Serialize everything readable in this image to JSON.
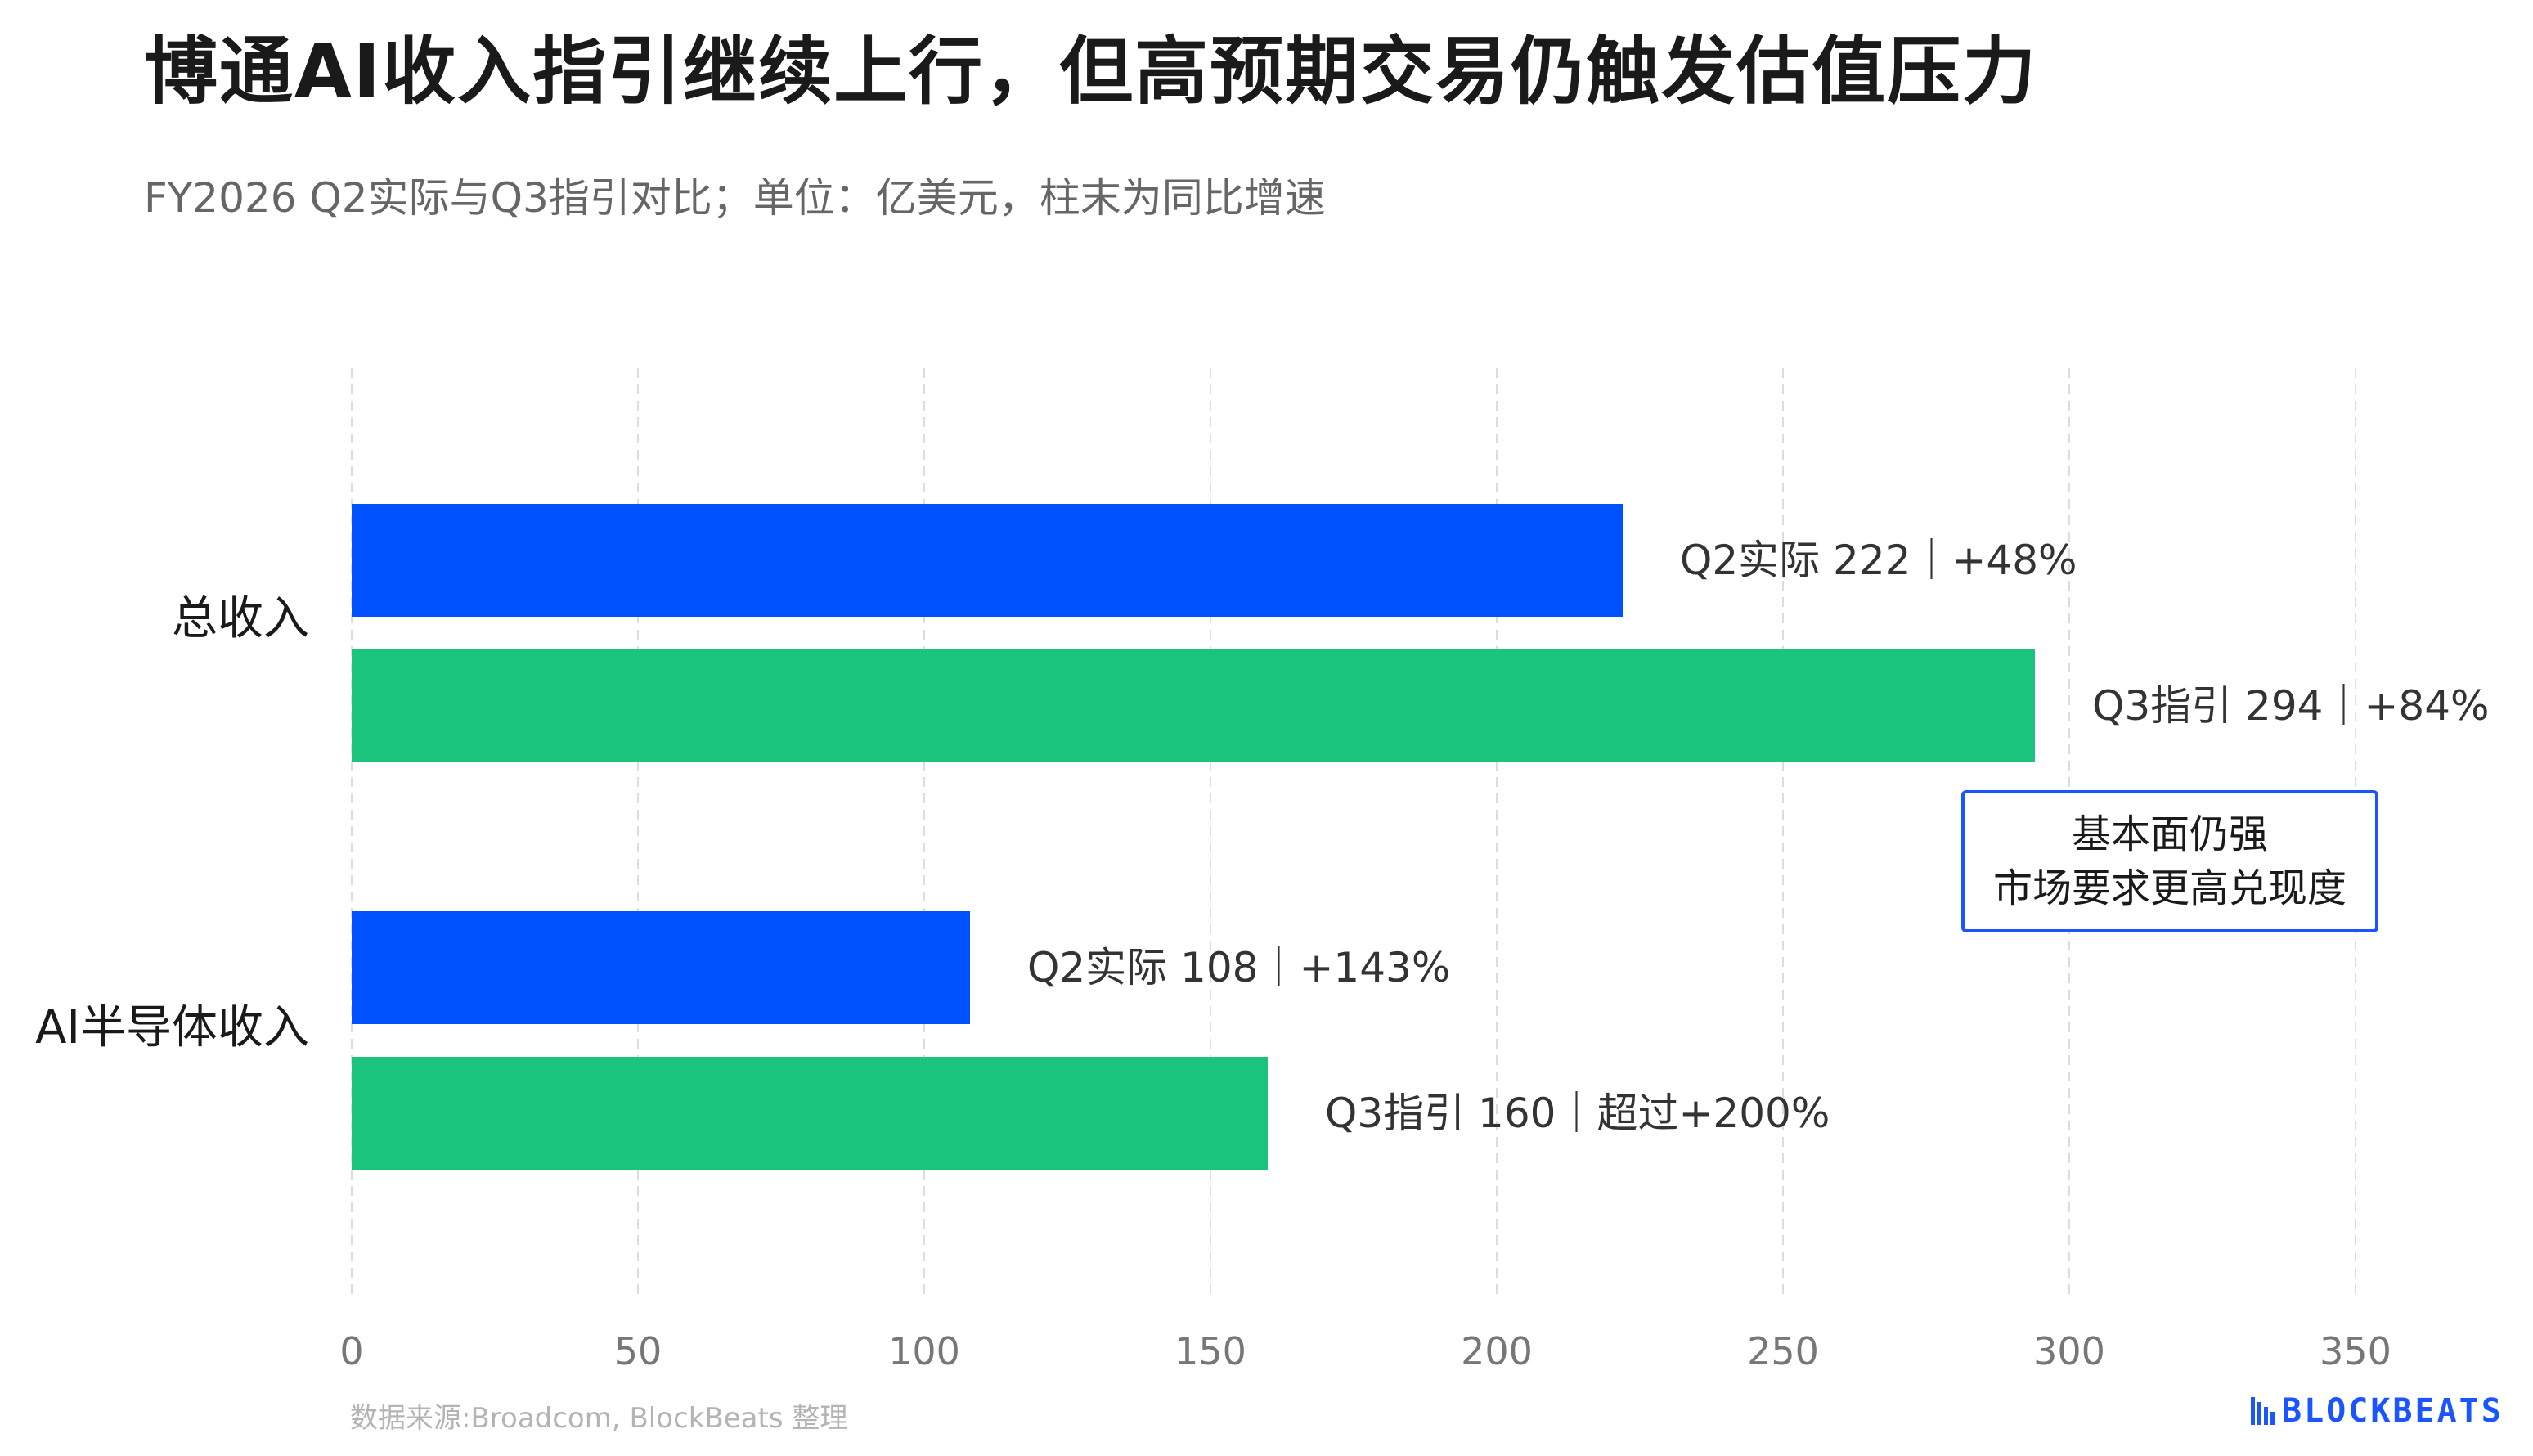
{
  "header": {
    "title": "博通AI收入指引继续上行，但高预期交易仍触发估值压力",
    "subtitle": "FY2026 Q2实际与Q3指引对比；单位：亿美元，柱末为同比增速"
  },
  "colors": {
    "q2_actual": "#0051ff",
    "q3_guidance": "#1bc47d",
    "accent": "#1a55ff",
    "grid": "#dddddd"
  },
  "chart_data": {
    "type": "bar",
    "orientation": "horizontal",
    "categories": [
      "总收入",
      "AI半导体收入"
    ],
    "series": [
      {
        "name": "Q2实际",
        "values": [
          222,
          108
        ],
        "labels": [
          "Q2实际 222｜+48%",
          "Q2实际 108｜+143%"
        ]
      },
      {
        "name": "Q3指引",
        "values": [
          294,
          160
        ],
        "labels": [
          "Q3指引 294｜+84%",
          "Q3指引 160｜超过+200%"
        ]
      }
    ],
    "xlim": [
      0,
      350
    ],
    "xticks": [
      0,
      50,
      100,
      150,
      200,
      250,
      300,
      350
    ],
    "grid": true,
    "gridlines": "vertical dashed",
    "legend": "none",
    "annotation": {
      "line1": "基本面仍强",
      "line2": "市场要求更高兑现度"
    }
  },
  "footer": {
    "source": "数据来源:Broadcom, BlockBeats 整理",
    "logo_text": "BLOCKBEATS",
    "logo_icon": "blockbeats-logo-icon"
  }
}
